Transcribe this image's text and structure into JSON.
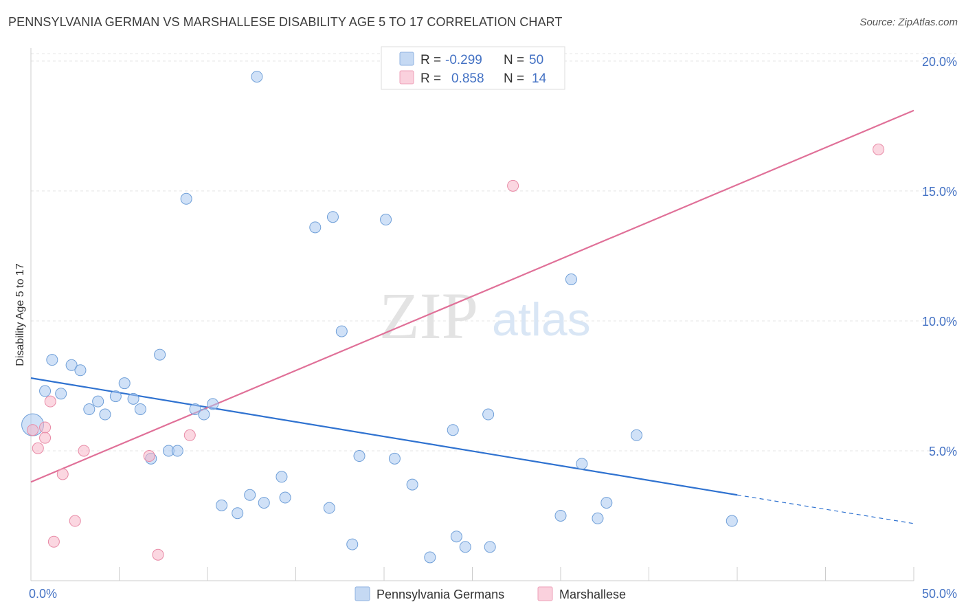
{
  "header": {
    "title": "PENNSYLVANIA GERMAN VS MARSHALLESE DISABILITY AGE 5 TO 17 CORRELATION CHART",
    "source": "Source: ZipAtlas.com"
  },
  "watermark": {
    "zip": "ZIP",
    "atlas": "atlas"
  },
  "legend": {
    "rows": [
      {
        "r_label": "R =",
        "r_value": "-0.299",
        "n_label": "N =",
        "n_value": "50",
        "color": "#a9c8f0"
      },
      {
        "r_label": "R =",
        "r_value": "0.858",
        "n_label": "N =",
        "n_value": "14",
        "color": "#f7b6c8"
      }
    ]
  },
  "chart_data": {
    "type": "scatter",
    "title": "PENNSYLVANIA GERMAN VS MARSHALLESE DISABILITY AGE 5 TO 17 CORRELATION CHART",
    "xlabel": "",
    "ylabel": "Disability Age 5 to 17",
    "xlim": [
      0,
      50
    ],
    "ylim": [
      0,
      20.5
    ],
    "x_tick_labels": [
      "0.0%",
      "50.0%"
    ],
    "y_ticks": [
      5,
      10,
      15,
      20
    ],
    "y_tick_labels": [
      "5.0%",
      "10.0%",
      "15.0%",
      "20.0%"
    ],
    "grid": true,
    "legend_position": "top-center",
    "series": [
      {
        "name": "Pennsylvania Germans",
        "color": "#a9c8f0",
        "stroke": "#6f9fd8",
        "line_color": "#2f72d0",
        "trend": {
          "x0": 0,
          "y0": 7.8,
          "x1": 40,
          "y1": 3.3,
          "dash_to_x": 50,
          "dash_to_y": 2.2
        },
        "points": [
          [
            0.1,
            6.0
          ],
          [
            0.8,
            7.3
          ],
          [
            1.2,
            8.5
          ],
          [
            1.7,
            7.2
          ],
          [
            2.3,
            8.3
          ],
          [
            2.8,
            8.1
          ],
          [
            3.3,
            6.6
          ],
          [
            3.8,
            6.9
          ],
          [
            4.2,
            6.4
          ],
          [
            4.8,
            7.1
          ],
          [
            5.3,
            7.6
          ],
          [
            5.8,
            7.0
          ],
          [
            6.2,
            6.6
          ],
          [
            6.8,
            4.7
          ],
          [
            7.3,
            8.7
          ],
          [
            7.8,
            5.0
          ],
          [
            8.3,
            5.0
          ],
          [
            8.8,
            14.7
          ],
          [
            9.3,
            6.6
          ],
          [
            9.8,
            6.4
          ],
          [
            10.3,
            6.8
          ],
          [
            10.8,
            2.9
          ],
          [
            11.7,
            2.6
          ],
          [
            12.4,
            3.3
          ],
          [
            12.8,
            19.4
          ],
          [
            13.2,
            3.0
          ],
          [
            14.2,
            4.0
          ],
          [
            14.4,
            3.2
          ],
          [
            16.1,
            13.6
          ],
          [
            16.9,
            2.8
          ],
          [
            17.1,
            14.0
          ],
          [
            17.6,
            9.6
          ],
          [
            18.2,
            1.4
          ],
          [
            18.6,
            4.8
          ],
          [
            20.1,
            13.9
          ],
          [
            20.6,
            4.7
          ],
          [
            21.6,
            3.7
          ],
          [
            22.6,
            0.9
          ],
          [
            23.9,
            5.8
          ],
          [
            24.1,
            1.7
          ],
          [
            24.6,
            1.3
          ],
          [
            25.9,
            6.4
          ],
          [
            26.0,
            1.3
          ],
          [
            30.0,
            2.5
          ],
          [
            30.6,
            11.6
          ],
          [
            31.2,
            4.5
          ],
          [
            32.1,
            2.4
          ],
          [
            32.6,
            3.0
          ],
          [
            34.3,
            5.6
          ],
          [
            39.7,
            2.3
          ]
        ]
      },
      {
        "name": "Marshallese",
        "color": "#f7b6c8",
        "stroke": "#e88aa6",
        "line_color": "#e07098",
        "trend": {
          "x0": 0,
          "y0": 3.8,
          "x1": 50,
          "y1": 18.1
        },
        "points": [
          [
            0.1,
            5.8
          ],
          [
            0.4,
            5.1
          ],
          [
            0.8,
            5.9
          ],
          [
            0.8,
            5.5
          ],
          [
            1.1,
            6.9
          ],
          [
            1.3,
            1.5
          ],
          [
            1.8,
            4.1
          ],
          [
            2.5,
            2.3
          ],
          [
            3.0,
            5.0
          ],
          [
            6.7,
            4.8
          ],
          [
            7.2,
            1.0
          ],
          [
            9.0,
            5.6
          ],
          [
            27.3,
            15.2
          ],
          [
            48.0,
            16.6
          ]
        ]
      }
    ]
  }
}
